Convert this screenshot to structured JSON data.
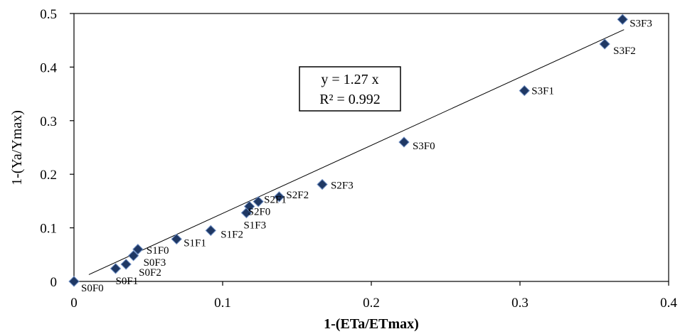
{
  "chart_data": {
    "type": "scatter",
    "title": "",
    "xlabel": "1-(ETa/ETmax)",
    "ylabel": "1-(Ya/Ymax)",
    "xlim": [
      0,
      0.4
    ],
    "ylim": [
      0,
      0.5
    ],
    "x_ticks": [
      "0",
      "0.1",
      "0.2",
      "0.3",
      "0.4"
    ],
    "y_ticks": [
      "0",
      "0.1",
      "0.2",
      "0.3",
      "0.4",
      "0.5"
    ],
    "grid": false,
    "points": [
      {
        "label": "S0F0",
        "x": 0.0,
        "y": 0.0
      },
      {
        "label": "S0F1",
        "x": 0.028,
        "y": 0.024
      },
      {
        "label": "S0F2",
        "x": 0.035,
        "y": 0.032
      },
      {
        "label": "S0F3",
        "x": 0.04,
        "y": 0.048
      },
      {
        "label": "S1F0",
        "x": 0.043,
        "y": 0.06
      },
      {
        "label": "S1F1",
        "x": 0.069,
        "y": 0.079
      },
      {
        "label": "S1F2",
        "x": 0.092,
        "y": 0.095
      },
      {
        "label": "S1F3",
        "x": 0.116,
        "y": 0.128
      },
      {
        "label": "S2F0",
        "x": 0.118,
        "y": 0.14
      },
      {
        "label": "S2F1",
        "x": 0.124,
        "y": 0.149
      },
      {
        "label": "S2F2",
        "x": 0.138,
        "y": 0.158
      },
      {
        "label": "S2F3",
        "x": 0.167,
        "y": 0.181
      },
      {
        "label": "S3F0",
        "x": 0.222,
        "y": 0.26
      },
      {
        "label": "S3F1",
        "x": 0.303,
        "y": 0.356
      },
      {
        "label": "S3F2",
        "x": 0.357,
        "y": 0.443
      },
      {
        "label": "S3F3",
        "x": 0.369,
        "y": 0.489
      }
    ],
    "trendline": {
      "slope": 1.27,
      "x_range": [
        0.01,
        0.37
      ]
    },
    "annotation": {
      "equation": "y = 1.27 x",
      "r_squared": "R² = 0.992"
    },
    "marker_color": "#1f3864"
  }
}
